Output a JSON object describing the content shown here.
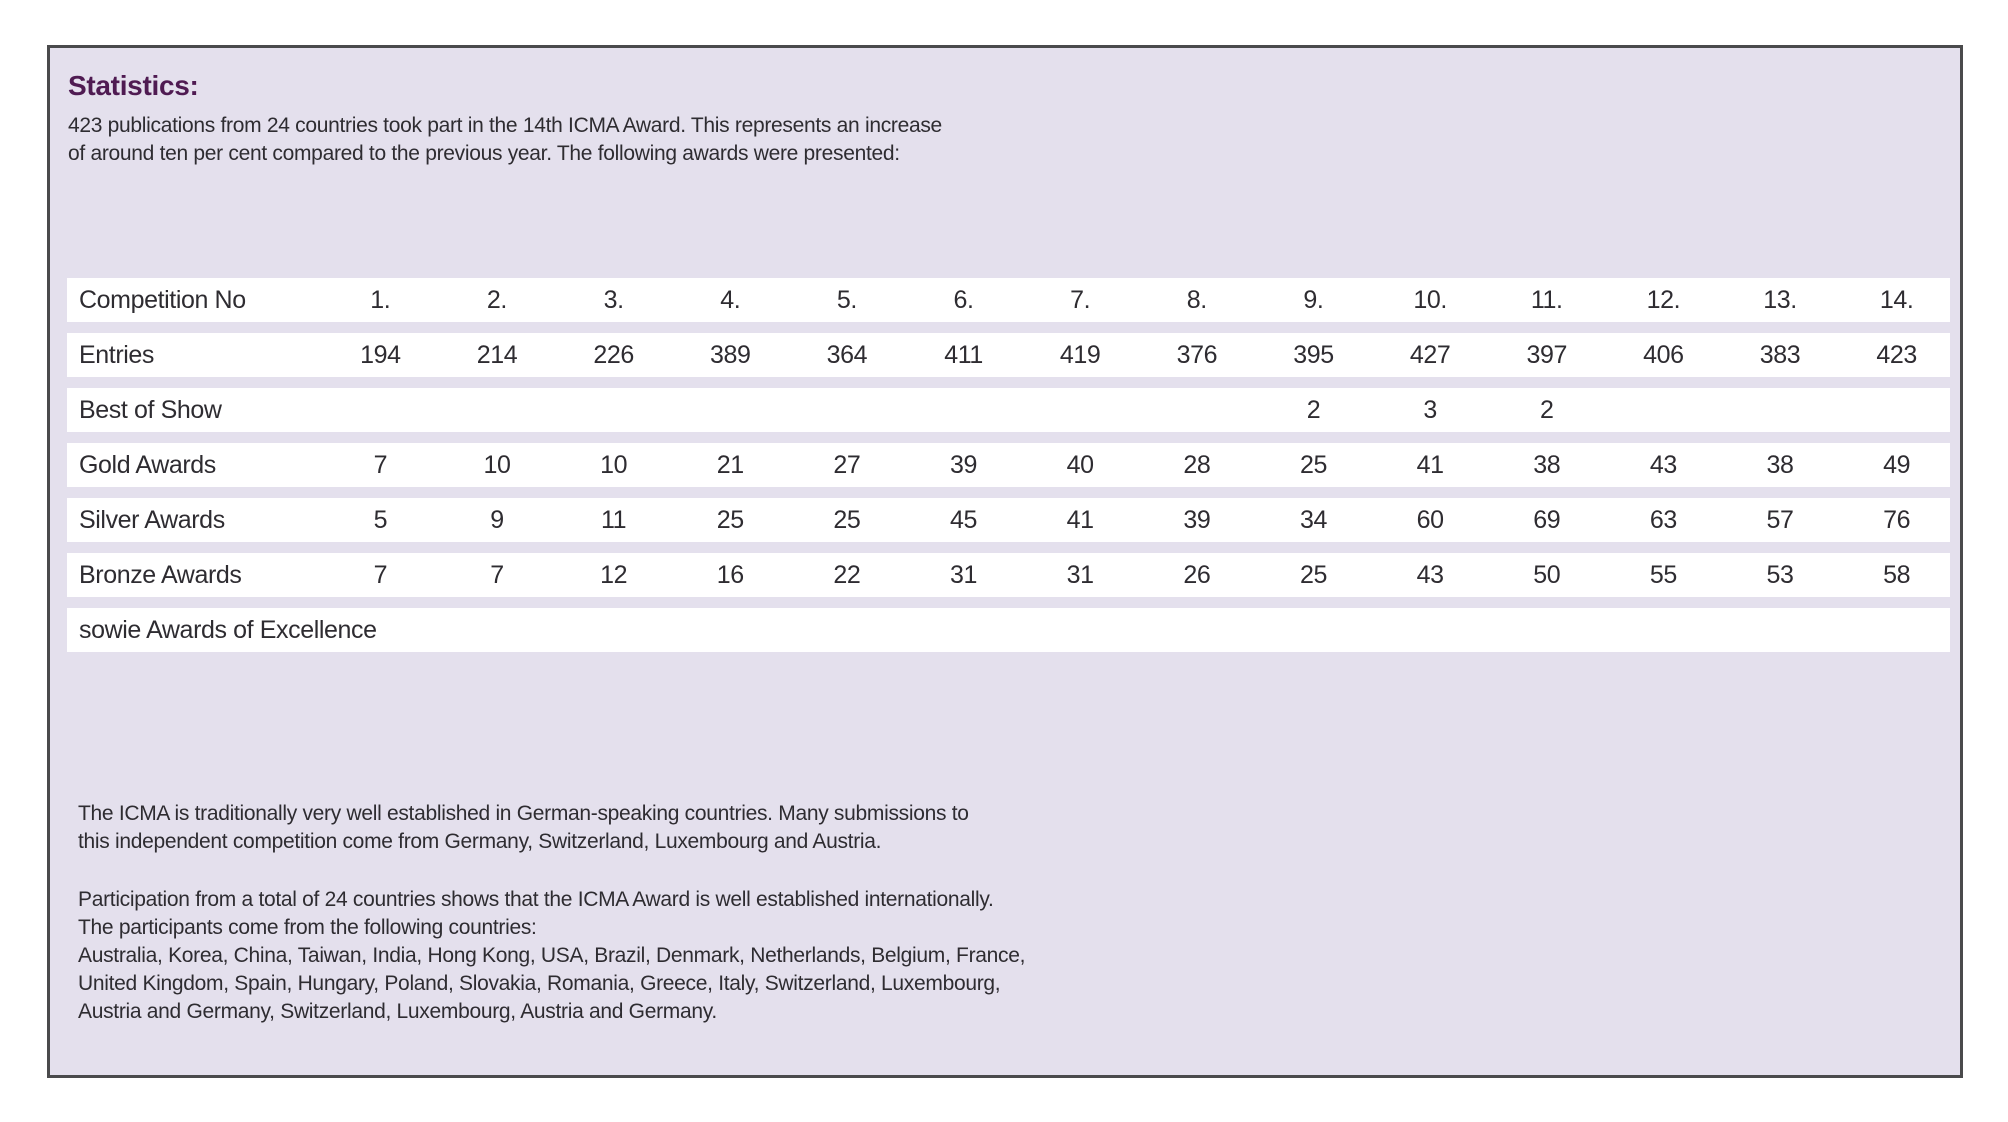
{
  "panel": {
    "heading": "Statistics:",
    "intro": "423 publications from 24 countries took part in the 14th ICMA Award. This represents an increase\nof around ten per cent compared to the previous year. The following awards were presented:"
  },
  "table": {
    "header_label": "Competition No",
    "columns": [
      "1.",
      "2.",
      "3.",
      "4.",
      "5.",
      "6.",
      "7.",
      "8.",
      "9.",
      "10.",
      "11.",
      "12.",
      "13.",
      "14."
    ],
    "rows": [
      {
        "label": "Entries",
        "values": [
          "194",
          "214",
          "226",
          "389",
          "364",
          "411",
          "419",
          "376",
          "395",
          "427",
          "397",
          "406",
          "383",
          "423"
        ]
      },
      {
        "label": "Best of Show",
        "values": [
          "",
          "",
          "",
          "",
          "",
          "",
          "",
          "",
          "2",
          "3",
          "2",
          "",
          "",
          ""
        ]
      },
      {
        "label": "Gold Awards",
        "values": [
          "7",
          "10",
          "10",
          "21",
          "27",
          "39",
          "40",
          "28",
          "25",
          "41",
          "38",
          "43",
          "38",
          "49"
        ]
      },
      {
        "label": "Silver Awards",
        "values": [
          "5",
          "9",
          "11",
          "25",
          "25",
          "45",
          "41",
          "39",
          "34",
          "60",
          "69",
          "63",
          "57",
          "76"
        ]
      },
      {
        "label": "Bronze Awards",
        "values": [
          "7",
          "7",
          "12",
          "16",
          "22",
          "31",
          "31",
          "26",
          "25",
          "43",
          "50",
          "55",
          "53",
          "58"
        ]
      }
    ],
    "footer_label": "sowie Awards of Excellence"
  },
  "paragraphs": {
    "p1": "The ICMA is traditionally very well established in German-speaking countries. Many submissions to\nthis independent competition come from Germany, Switzerland, Luxembourg and Austria.",
    "p2": "Participation from a total of 24 countries shows that the ICMA Award is well established internationally.\nThe participants come from the following countries:\nAustralia, Korea, China, Taiwan, India, Hong Kong, USA, Brazil, Denmark, Netherlands, Belgium, France,\nUnited Kingdom, Spain, Hungary, Poland, Slovakia, Romania, Greece, Italy, Switzerland, Luxembourg,\nAustria and Germany, Switzerland, Luxembourg, Austria and Germany."
  },
  "colors": {
    "panel_bg": "#e4e0ed",
    "panel_border": "#4a4a4c",
    "heading": "#4f1b52",
    "text": "#2e2c31",
    "row_bg": "#ffffff"
  }
}
